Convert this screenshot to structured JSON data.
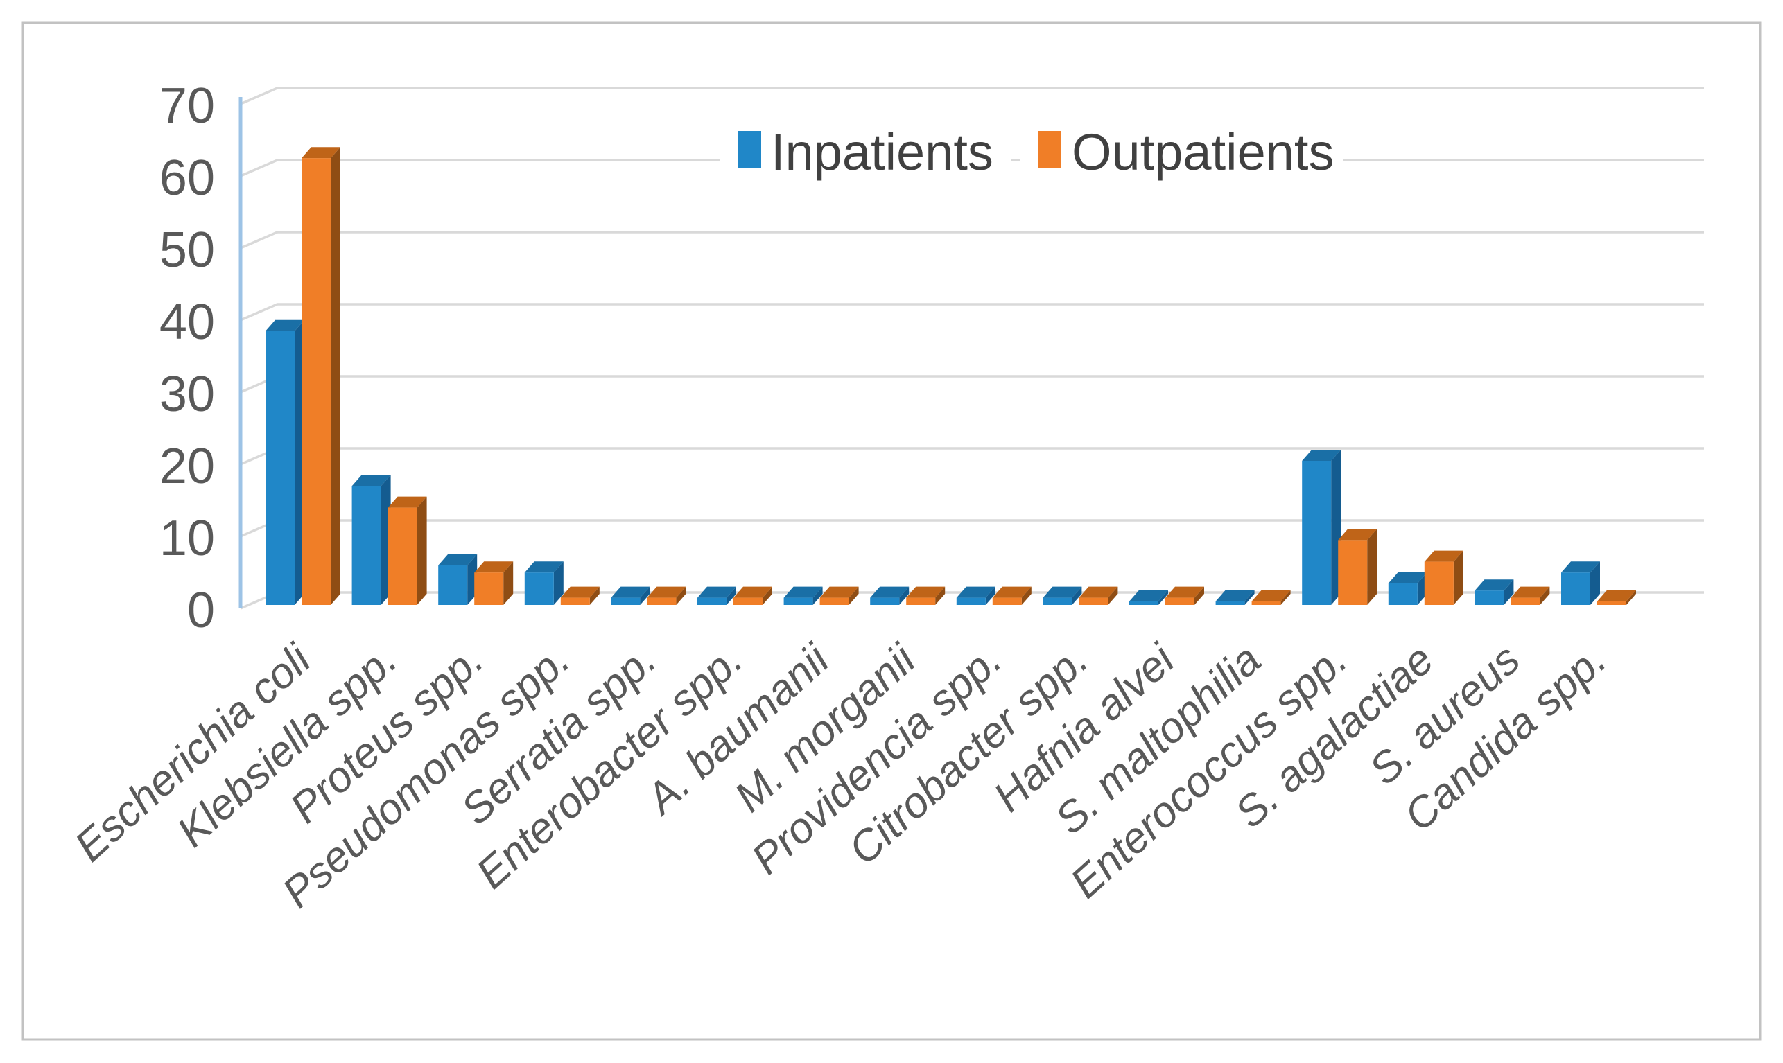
{
  "figure": {
    "background": "#ffffff",
    "border_color": "#c2c2c2",
    "gridline_color": "#d9d9d9",
    "axis_line_color": "#9dc3e6",
    "tick_label_color": "#595959",
    "category_label_color": "#595959",
    "legend_text_color": "#404040"
  },
  "legend": {
    "items": [
      {
        "label": "Inpatients",
        "color": "#2087C8"
      },
      {
        "label": "Outpatients",
        "color": "#F07E27"
      }
    ]
  },
  "y_axis": {
    "tick_labels": [
      "0",
      "10",
      "20",
      "30",
      "40",
      "50",
      "60",
      "70"
    ],
    "min": 0,
    "max": 70,
    "step": 10
  },
  "chart_data": {
    "type": "bar",
    "style": "3d-clustered-column",
    "title": "",
    "xlabel": "",
    "ylabel": "",
    "ylim": [
      0,
      70
    ],
    "grid": true,
    "legend_position": "top-center",
    "categories": [
      "Escherichia coli",
      "Klebsiella spp.",
      "Proteus spp.",
      "Pseudomonas spp.",
      "Serratia spp.",
      "Enterobacter spp.",
      "A. baumanii",
      "M. morganii",
      "Providencia spp.",
      "Citrobacter spp.",
      "Hafnia alvei",
      "S. maltophilia",
      "Enterococcus spp.",
      "S. agalactiae",
      "S. aureus",
      "Candida spp."
    ],
    "series": [
      {
        "name": "Inpatients",
        "color_front": "#2087C8",
        "color_side": "#145C90",
        "color_top": "#1A6FA6",
        "values": [
          38,
          16.5,
          5.5,
          4.5,
          1,
          1,
          1,
          1,
          1,
          1,
          0.5,
          0.5,
          20,
          3,
          2,
          4.5
        ]
      },
      {
        "name": "Outpatients",
        "color_front": "#F07E27",
        "color_side": "#8F4D14",
        "color_top": "#BF6418",
        "values": [
          62,
          13.5,
          4.5,
          1,
          1,
          1,
          1,
          1,
          1,
          1,
          1,
          0.5,
          9,
          6,
          1,
          0.5
        ]
      }
    ]
  }
}
